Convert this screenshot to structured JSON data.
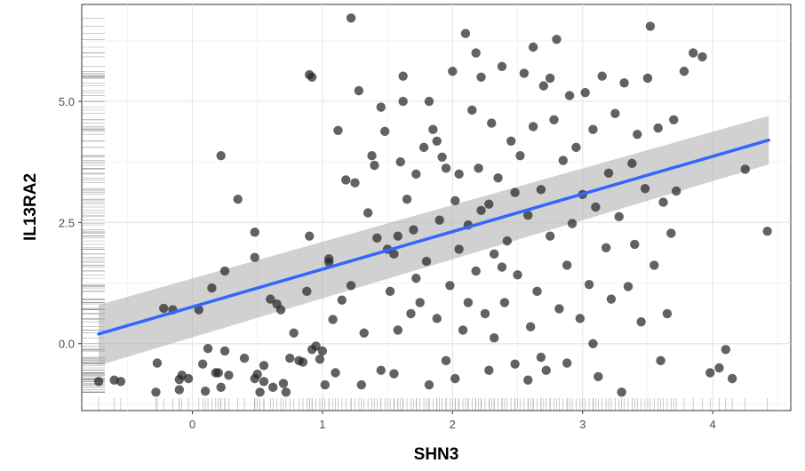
{
  "chart_data": {
    "type": "scatter",
    "title": "",
    "xlabel": "SHN3",
    "ylabel": "IL13RA2",
    "xlim": [
      -0.85,
      4.6
    ],
    "ylim": [
      -1.38,
      7.0
    ],
    "x_ticks": [
      0,
      1,
      2,
      3,
      4
    ],
    "x_tick_labels": [
      "0",
      "1",
      "2",
      "3",
      "4"
    ],
    "y_ticks": [
      0.0,
      2.5,
      5.0
    ],
    "y_tick_labels": [
      "0.0",
      "2.5",
      "5.0"
    ],
    "grid": true,
    "legend": "none",
    "colors": {
      "points": "#262626",
      "fit_line": "#3366FF",
      "ribbon": "#b3b3b3",
      "grid": "#e6e6e6",
      "rug": "#666666"
    },
    "fit": {
      "method": "linear",
      "x": [
        -0.72,
        4.43
      ],
      "y": [
        0.2,
        4.2
      ],
      "ci_lower": [
        -0.45,
        3.7
      ],
      "ci_upper": [
        0.8,
        4.7
      ]
    },
    "points": [
      [
        -0.72,
        -0.78
      ],
      [
        -0.6,
        -0.75
      ],
      [
        -0.55,
        -0.78
      ],
      [
        -0.28,
        -1.0
      ],
      [
        -0.27,
        -0.4
      ],
      [
        -0.22,
        0.73
      ],
      [
        -0.15,
        0.7
      ],
      [
        -0.1,
        -0.74
      ],
      [
        -0.1,
        -0.95
      ],
      [
        -0.08,
        -0.65
      ],
      [
        -0.03,
        -0.72
      ],
      [
        0.05,
        0.7
      ],
      [
        0.08,
        -0.42
      ],
      [
        0.1,
        -0.98
      ],
      [
        0.12,
        -0.1
      ],
      [
        0.15,
        1.15
      ],
      [
        0.18,
        -0.6
      ],
      [
        0.2,
        -0.6
      ],
      [
        0.22,
        3.88
      ],
      [
        0.22,
        -0.9
      ],
      [
        0.25,
        -0.15
      ],
      [
        0.25,
        1.5
      ],
      [
        0.28,
        -0.65
      ],
      [
        0.35,
        2.98
      ],
      [
        0.4,
        -0.3
      ],
      [
        0.48,
        -0.72
      ],
      [
        0.48,
        2.3
      ],
      [
        0.48,
        1.78
      ],
      [
        0.5,
        -0.63
      ],
      [
        0.52,
        -1.0
      ],
      [
        0.55,
        -0.45
      ],
      [
        0.55,
        -0.78
      ],
      [
        0.6,
        0.92
      ],
      [
        0.62,
        -0.9
      ],
      [
        0.65,
        0.82
      ],
      [
        0.68,
        0.7
      ],
      [
        0.7,
        -0.82
      ],
      [
        0.72,
        -1.0
      ],
      [
        0.75,
        -0.3
      ],
      [
        0.78,
        0.22
      ],
      [
        0.82,
        -0.35
      ],
      [
        0.85,
        -0.38
      ],
      [
        0.88,
        1.08
      ],
      [
        0.9,
        2.22
      ],
      [
        0.9,
        5.55
      ],
      [
        0.92,
        5.5
      ],
      [
        0.92,
        -0.12
      ],
      [
        0.95,
        -0.05
      ],
      [
        0.98,
        -0.32
      ],
      [
        1.0,
        -0.15
      ],
      [
        1.02,
        -0.85
      ],
      [
        1.05,
        1.75
      ],
      [
        1.05,
        1.68
      ],
      [
        1.08,
        0.5
      ],
      [
        1.1,
        -0.6
      ],
      [
        1.12,
        4.4
      ],
      [
        1.15,
        0.9
      ],
      [
        1.18,
        3.38
      ],
      [
        1.22,
        1.2
      ],
      [
        1.25,
        3.32
      ],
      [
        1.28,
        5.22
      ],
      [
        1.3,
        -0.85
      ],
      [
        1.32,
        0.22
      ],
      [
        1.35,
        2.7
      ],
      [
        1.38,
        3.88
      ],
      [
        1.4,
        3.68
      ],
      [
        1.42,
        2.18
      ],
      [
        1.45,
        -0.55
      ],
      [
        1.48,
        4.38
      ],
      [
        1.5,
        1.95
      ],
      [
        1.52,
        1.08
      ],
      [
        1.55,
        1.85
      ],
      [
        1.55,
        -0.62
      ],
      [
        1.58,
        2.22
      ],
      [
        1.6,
        3.75
      ],
      [
        1.62,
        5.52
      ],
      [
        1.65,
        2.98
      ],
      [
        1.68,
        0.62
      ],
      [
        1.7,
        2.35
      ],
      [
        1.72,
        3.5
      ],
      [
        1.75,
        0.85
      ],
      [
        1.78,
        4.05
      ],
      [
        1.8,
        1.7
      ],
      [
        1.82,
        5.0
      ],
      [
        1.85,
        4.42
      ],
      [
        1.88,
        0.52
      ],
      [
        1.9,
        2.55
      ],
      [
        1.92,
        3.85
      ],
      [
        1.95,
        -0.35
      ],
      [
        1.98,
        1.2
      ],
      [
        2.0,
        5.62
      ],
      [
        2.02,
        2.95
      ],
      [
        2.05,
        3.5
      ],
      [
        2.08,
        0.28
      ],
      [
        2.1,
        6.4
      ],
      [
        2.12,
        2.45
      ],
      [
        2.15,
        4.82
      ],
      [
        2.18,
        1.5
      ],
      [
        2.2,
        3.62
      ],
      [
        2.22,
        5.5
      ],
      [
        2.25,
        0.62
      ],
      [
        2.28,
        2.88
      ],
      [
        2.3,
        4.55
      ],
      [
        2.32,
        1.85
      ],
      [
        2.35,
        3.42
      ],
      [
        2.38,
        5.72
      ],
      [
        2.4,
        0.85
      ],
      [
        2.42,
        2.12
      ],
      [
        2.45,
        4.18
      ],
      [
        2.48,
        -0.42
      ],
      [
        2.5,
        1.42
      ],
      [
        2.52,
        3.88
      ],
      [
        2.55,
        5.58
      ],
      [
        2.58,
        2.65
      ],
      [
        2.6,
        0.35
      ],
      [
        2.62,
        4.48
      ],
      [
        2.65,
        1.08
      ],
      [
        2.68,
        3.18
      ],
      [
        2.7,
        5.32
      ],
      [
        2.72,
        -0.55
      ],
      [
        2.75,
        2.22
      ],
      [
        2.78,
        4.62
      ],
      [
        2.8,
        6.28
      ],
      [
        2.82,
        0.72
      ],
      [
        2.85,
        3.78
      ],
      [
        2.88,
        1.62
      ],
      [
        2.9,
        5.12
      ],
      [
        2.92,
        2.48
      ],
      [
        2.95,
        4.05
      ],
      [
        2.98,
        0.52
      ],
      [
        3.0,
        3.08
      ],
      [
        3.02,
        5.18
      ],
      [
        3.05,
        1.22
      ],
      [
        3.08,
        4.42
      ],
      [
        3.1,
        2.82
      ],
      [
        3.12,
        -0.68
      ],
      [
        3.15,
        5.52
      ],
      [
        3.18,
        1.98
      ],
      [
        3.2,
        3.52
      ],
      [
        3.22,
        0.92
      ],
      [
        3.25,
        4.75
      ],
      [
        3.28,
        2.62
      ],
      [
        3.3,
        -1.0
      ],
      [
        3.32,
        5.38
      ],
      [
        3.35,
        1.18
      ],
      [
        3.38,
        3.72
      ],
      [
        3.4,
        2.05
      ],
      [
        3.42,
        4.32
      ],
      [
        3.45,
        0.45
      ],
      [
        3.48,
        3.2
      ],
      [
        3.5,
        5.48
      ],
      [
        3.52,
        6.55
      ],
      [
        3.55,
        1.62
      ],
      [
        3.58,
        4.45
      ],
      [
        3.6,
        -0.35
      ],
      [
        3.62,
        2.92
      ],
      [
        3.65,
        0.62
      ],
      [
        3.68,
        2.28
      ],
      [
        3.7,
        4.62
      ],
      [
        3.72,
        3.15
      ],
      [
        3.78,
        5.62
      ],
      [
        3.85,
        6.0
      ],
      [
        3.92,
        5.92
      ],
      [
        3.98,
        -0.6
      ],
      [
        4.05,
        -0.5
      ],
      [
        4.1,
        -0.12
      ],
      [
        4.15,
        -0.72
      ],
      [
        4.25,
        3.6
      ],
      [
        4.42,
        2.32
      ],
      [
        1.22,
        6.72
      ],
      [
        1.62,
        5.0
      ],
      [
        2.18,
        6.0
      ],
      [
        2.62,
        6.12
      ],
      [
        2.75,
        5.48
      ],
      [
        1.95,
        3.62
      ],
      [
        2.32,
        0.12
      ],
      [
        1.45,
        4.88
      ],
      [
        2.05,
        1.95
      ],
      [
        1.88,
        4.18
      ],
      [
        2.22,
        2.75
      ],
      [
        2.48,
        3.12
      ],
      [
        1.72,
        1.35
      ],
      [
        2.12,
        0.85
      ],
      [
        2.38,
        1.58
      ],
      [
        1.58,
        0.28
      ],
      [
        2.68,
        -0.28
      ],
      [
        2.02,
        -0.72
      ],
      [
        2.28,
        -0.55
      ],
      [
        1.82,
        -0.85
      ],
      [
        2.58,
        -0.75
      ],
      [
        2.88,
        -0.4
      ],
      [
        3.08,
        0.0
      ]
    ]
  }
}
